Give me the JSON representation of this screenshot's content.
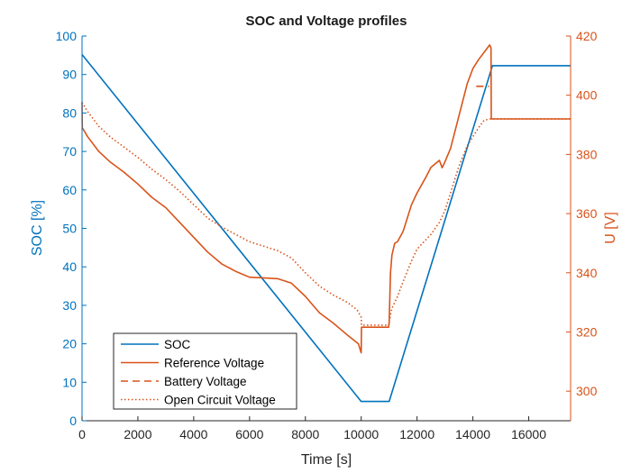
{
  "chart_data": {
    "type": "line",
    "title": "SOC and Voltage profiles",
    "xlabel": "Time [s]",
    "ylabel_left": "SOC [%]",
    "ylabel_right": "U [V]",
    "xlim": [
      0,
      17500
    ],
    "ylim_left": [
      0,
      100
    ],
    "ylim_right": [
      290,
      420
    ],
    "xticks": [
      0,
      2000,
      4000,
      6000,
      8000,
      10000,
      12000,
      14000,
      16000
    ],
    "yticks_left": [
      0,
      10,
      20,
      30,
      40,
      50,
      60,
      70,
      80,
      90,
      100
    ],
    "yticks_right": [
      300,
      320,
      340,
      360,
      380,
      400,
      420
    ],
    "grid": false,
    "legend_position": "bottom-left",
    "colors": {
      "soc": "#0072BD",
      "voltage": "#D95319",
      "axis_left": "#0072BD",
      "axis_right": "#D95319"
    },
    "series": [
      {
        "name": "SOC",
        "axis": "left",
        "style": "solid",
        "x": [
          0,
          10000,
          11000,
          14700,
          17500
        ],
        "y": [
          95.2,
          5,
          5,
          92.3,
          92.3
        ]
      },
      {
        "name": "Reference Voltage",
        "axis": "right",
        "style": "solid",
        "x": [
          0,
          10,
          200,
          600,
          1000,
          1500,
          2000,
          2500,
          3000,
          3500,
          4000,
          4500,
          5000,
          5500,
          6000,
          6500,
          7000,
          7500,
          8000,
          8500,
          9000,
          9500,
          9900,
          9980,
          10000,
          10010,
          10980,
          11000,
          11050,
          11100,
          11200,
          11300,
          11500,
          11800,
          12000,
          12300,
          12500,
          12800,
          12900,
          13000,
          13200,
          13500,
          13800,
          14000,
          14200,
          14400,
          14600,
          14650,
          14660,
          17500
        ],
        "y": [
          397.6,
          389,
          386,
          381,
          377.5,
          374,
          370,
          365.5,
          362,
          357,
          352,
          347,
          343,
          340.5,
          338.5,
          338.3,
          338,
          336.5,
          332,
          326.5,
          323,
          319,
          316,
          313.5,
          313,
          321.6,
          321.6,
          323,
          340,
          346,
          350,
          350.5,
          354,
          363,
          367,
          372,
          375.6,
          378,
          375.5,
          377.5,
          382,
          393,
          404,
          409,
          412,
          414.5,
          417,
          416,
          392,
          392
        ]
      },
      {
        "name": "Battery Voltage",
        "axis": "right",
        "style": "dashed",
        "x": [
          14120,
          14580
        ],
        "y": [
          403,
          403
        ]
      },
      {
        "name": "Open Circuit Voltage",
        "axis": "right",
        "style": "dotted",
        "x": [
          0,
          200,
          600,
          1000,
          1500,
          2000,
          2500,
          3000,
          3500,
          4000,
          4500,
          5000,
          5500,
          6000,
          6500,
          7000,
          7500,
          8000,
          8500,
          9000,
          9500,
          9850,
          10000,
          10010,
          10980,
          11000,
          11100,
          11300,
          11500,
          11800,
          12000,
          12300,
          12500,
          12800,
          13000,
          13200,
          13500,
          13800,
          14000,
          14200,
          14400,
          14600,
          17500
        ],
        "y": [
          397.6,
          394.5,
          389.5,
          386,
          382.5,
          379,
          375,
          371.5,
          367.5,
          363,
          358.5,
          355.5,
          353,
          350.5,
          349,
          347.5,
          345,
          340,
          335.5,
          332.5,
          330,
          327.5,
          325,
          322.3,
          322.3,
          323.5,
          328,
          332,
          337,
          344,
          348,
          351,
          353,
          357,
          361,
          367,
          376,
          383,
          386,
          389,
          391.5,
          392,
          392
        ]
      }
    ]
  }
}
